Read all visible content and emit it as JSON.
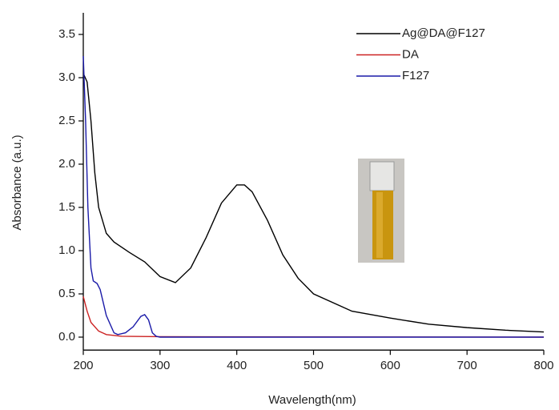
{
  "chart_data": {
    "type": "line",
    "xlabel": "Wavelength(nm)",
    "ylabel": "Absorbance (a.u.)",
    "xlim": [
      200,
      800
    ],
    "ylim": [
      -0.15,
      3.75
    ],
    "xticks": [
      200,
      300,
      400,
      500,
      600,
      700,
      800
    ],
    "yticks": [
      {
        "value": 0,
        "label": "0.0"
      },
      0.5,
      {
        "value": 1,
        "label": "1.0"
      },
      1.5,
      {
        "value": 2,
        "label": "2.0"
      },
      2.5,
      {
        "value": 3,
        "label": "3.0"
      },
      3.5
    ],
    "legend": "upper right",
    "series": [
      {
        "name": "Ag@DA@F127",
        "color": "#000000",
        "x": [
          200,
          205,
          210,
          215,
          220,
          230,
          240,
          260,
          280,
          300,
          320,
          340,
          360,
          380,
          400,
          410,
          420,
          440,
          460,
          480,
          500,
          550,
          600,
          650,
          700,
          750,
          800
        ],
        "values": [
          3.05,
          2.95,
          2.5,
          1.9,
          1.5,
          1.2,
          1.1,
          0.98,
          0.87,
          0.7,
          0.63,
          0.8,
          1.15,
          1.55,
          1.76,
          1.76,
          1.68,
          1.35,
          0.95,
          0.68,
          0.5,
          0.3,
          0.22,
          0.15,
          0.11,
          0.08,
          0.06
        ]
      },
      {
        "name": "DA",
        "color": "#cc2222",
        "x": [
          200,
          205,
          210,
          220,
          230,
          250,
          300,
          800
        ],
        "values": [
          0.47,
          0.3,
          0.17,
          0.07,
          0.03,
          0.01,
          0.005,
          0
        ]
      },
      {
        "name": "F127",
        "color": "#1a1aa8",
        "x": [
          200,
          203,
          206,
          210,
          213,
          218,
          222,
          230,
          240,
          245,
          255,
          265,
          275,
          280,
          285,
          290,
          295,
          300,
          400,
          800
        ],
        "values": [
          3.25,
          2.5,
          1.5,
          0.8,
          0.65,
          0.62,
          0.55,
          0.25,
          0.05,
          0.03,
          0.05,
          0.12,
          0.24,
          0.26,
          0.2,
          0.05,
          0.01,
          0,
          0,
          0
        ]
      }
    ]
  }
}
